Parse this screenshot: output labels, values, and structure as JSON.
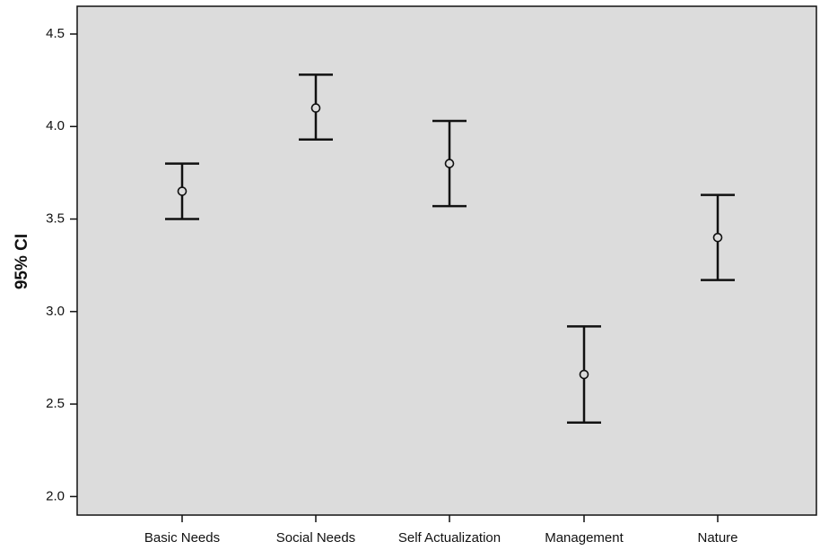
{
  "chart_data": {
    "type": "errorbar",
    "ylabel": "95% CI",
    "xlabel": "",
    "title": "",
    "categories": [
      "Basic Needs",
      "Social Needs",
      "Self Actualization",
      "Management",
      "Nature"
    ],
    "series": [
      {
        "mean": [
          3.65,
          4.1,
          3.8,
          2.66,
          3.4
        ],
        "lower": [
          3.5,
          3.93,
          3.57,
          2.4,
          3.17
        ],
        "upper": [
          3.8,
          4.28,
          4.03,
          2.92,
          3.63
        ]
      }
    ],
    "ylim": [
      1.9,
      4.65
    ],
    "yticks": [
      "2.0",
      "2.5",
      "3.0",
      "3.5",
      "4.0",
      "4.5"
    ],
    "grid": false,
    "legend": "none",
    "colors": {
      "plot_background": "#dcdcdc",
      "marks": "#111111"
    }
  }
}
